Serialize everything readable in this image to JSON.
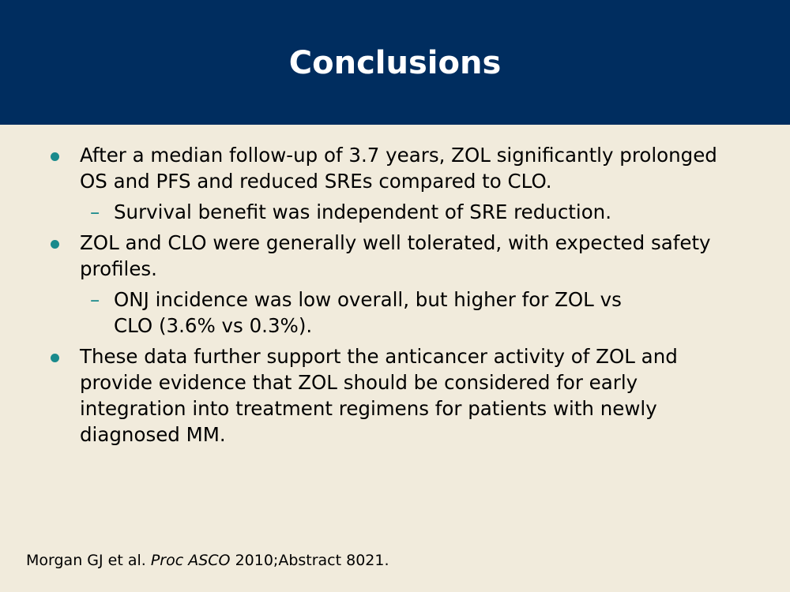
{
  "slide": {
    "title": "Conclusions",
    "bullet_color": "#1a8a8c",
    "dash_color": "#1a8a8c",
    "bullets": [
      {
        "text": "After a median follow-up of 3.7 years, ZOL significantly prolonged OS and PFS and reduced SREs compared to CLO.",
        "sub": "Survival benefit was independent of SRE reduction."
      },
      {
        "text": "ZOL and CLO were generally well tolerated, with expected safety profiles.",
        "sub": "ONJ incidence was low overall, but higher for ZOL vs CLO (3.6% vs 0.3%)."
      },
      {
        "text": "These data further support the anticancer activity of ZOL and provide evidence that ZOL should be considered for early integration into treatment regimens for patients with newly diagnosed MM."
      }
    ],
    "dash_glyph": "–",
    "reference": {
      "authors": "Morgan GJ et al.",
      "journal": "Proc ASCO",
      "details": "2010;Abstract 8021."
    }
  }
}
